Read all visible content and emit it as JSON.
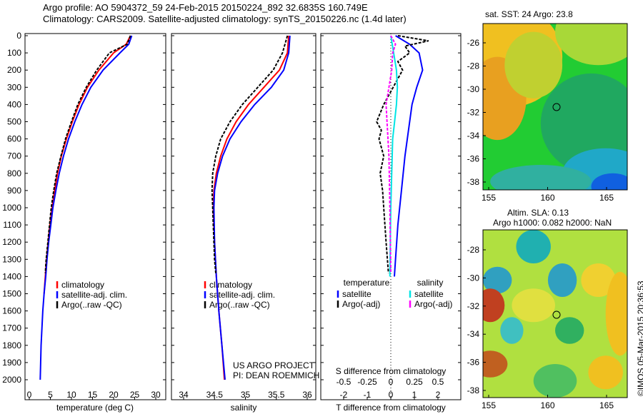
{
  "title": {
    "line1": "Argo profile: AO 5904372_59 24-Feb-2015 20150224_892 32.6835S 160.749E",
    "line2": "Climatology: CARS2009. Satellite-adjusted climatology: synTS_20150226.nc (1.4d later)"
  },
  "colors": {
    "climatology": "#ff0000",
    "satellite": "#0000ff",
    "argo": "#000000",
    "sal_sat": "#00e5e5",
    "sal_argo": "#ff00ff"
  },
  "chart_data": [
    {
      "type": "line",
      "name": "temperature",
      "xlabel": "temperature (deg C)",
      "xlim": [
        -2,
        32
      ],
      "ylim": [
        0,
        2050
      ],
      "xticks": [
        0,
        5,
        10,
        15,
        20,
        25,
        30
      ],
      "yticks": [
        0,
        100,
        200,
        300,
        400,
        500,
        600,
        700,
        800,
        900,
        1000,
        1100,
        1200,
        1300,
        1400,
        1500,
        1600,
        1700,
        1800,
        1900,
        2000
      ],
      "legend": [
        "climatology",
        "satellite-adj. clim.",
        "Argo(..raw -QC)"
      ],
      "series": [
        {
          "name": "climatology",
          "depth": [
            0,
            50,
            100,
            200,
            300,
            400,
            500,
            600,
            700,
            800,
            900,
            1000,
            1100,
            1200,
            1300,
            1400,
            1500
          ],
          "values": [
            24,
            23,
            20,
            16.5,
            13.8,
            11.8,
            10.2,
            8.8,
            7.6,
            6.7,
            6,
            5.4,
            4.9,
            4.5,
            4.1,
            3.8,
            3.5
          ]
        },
        {
          "name": "satellite-adj. clim.",
          "depth": [
            0,
            50,
            100,
            200,
            300,
            400,
            500,
            600,
            700,
            800,
            900,
            1000,
            1100,
            1200,
            1300,
            1400,
            1500,
            1600,
            1700,
            1800,
            1900,
            2000
          ],
          "values": [
            24.3,
            23.6,
            21.5,
            17.5,
            14.6,
            12.5,
            10.8,
            9.3,
            8.1,
            7.1,
            6.3,
            5.6,
            5.1,
            4.6,
            4.2,
            3.9,
            3.5,
            3.2,
            3,
            2.8,
            2.7,
            2.6
          ]
        },
        {
          "name": "Argo(..raw -QC)",
          "depth": [
            0,
            50,
            100,
            200,
            300,
            400,
            500,
            600,
            700,
            800,
            900,
            1000,
            1100,
            1200,
            1300,
            1380
          ],
          "values": [
            24,
            23.2,
            19,
            16,
            13.5,
            11.5,
            10,
            8.6,
            7.5,
            6.5,
            5.8,
            5.2,
            4.8,
            4.4,
            4,
            3.8
          ]
        }
      ]
    },
    {
      "type": "line",
      "name": "salinity",
      "xlabel": "salinity",
      "xlim": [
        33.8,
        36.2
      ],
      "xticks": [
        34,
        34.5,
        35,
        35.5,
        36
      ],
      "legend": [
        "climatology",
        "satellite-adj. clim.",
        "Argo(..raw -QC)"
      ],
      "series": [
        {
          "name": "climatology",
          "depth": [
            0,
            100,
            200,
            300,
            400,
            500,
            600,
            700,
            800,
            900,
            1000,
            1200,
            1400,
            1600,
            1800,
            2000
          ],
          "values": [
            35.7,
            35.68,
            35.55,
            35.3,
            35.05,
            34.85,
            34.7,
            34.6,
            34.53,
            34.49,
            34.48,
            34.5,
            34.53,
            34.57,
            34.62,
            34.66
          ]
        },
        {
          "name": "satellite-adj. clim.",
          "depth": [
            0,
            100,
            200,
            300,
            400,
            500,
            600,
            700,
            800,
            900,
            1000,
            1200,
            1400,
            1600,
            1800,
            2000
          ],
          "values": [
            35.72,
            35.7,
            35.62,
            35.42,
            35.15,
            34.93,
            34.75,
            34.63,
            34.55,
            34.5,
            34.49,
            34.5,
            34.53,
            34.57,
            34.62,
            34.67
          ]
        },
        {
          "name": "Argo(..raw -QC)",
          "depth": [
            0,
            100,
            200,
            300,
            400,
            500,
            600,
            700,
            800,
            900,
            1000,
            1100,
            1200,
            1300,
            1380
          ],
          "values": [
            35.68,
            35.6,
            35.45,
            35.2,
            34.95,
            34.75,
            34.6,
            34.52,
            34.47,
            34.46,
            34.47,
            34.48,
            34.49,
            34.5,
            34.52
          ]
        }
      ]
    },
    {
      "type": "line",
      "name": "difference",
      "xlabel": "T difference from climatology",
      "x2label": "S difference from climatology",
      "xlim": [
        -3,
        3
      ],
      "xticks": [
        -2,
        -1,
        0,
        1,
        2
      ],
      "x2ticks": [
        "-0.5",
        "-0.25",
        "0",
        "0.25",
        "0.5"
      ],
      "legend": {
        "temperature_title": "temperature",
        "salinity_title": "salinity",
        "t_sat": "satellite",
        "t_argo": "Argo(-adj)",
        "s_sat": "satellite",
        "s_argo": "Argo(-adj)"
      },
      "series": [
        {
          "name": "T satellite",
          "depth": [
            0,
            50,
            100,
            200,
            300,
            400,
            500,
            700,
            900,
            1100,
            1300,
            1400
          ],
          "values": [
            0.2,
            0.8,
            1.2,
            1.35,
            1.1,
            0.9,
            0.8,
            0.6,
            0.45,
            0.3,
            0.2,
            0.15
          ]
        },
        {
          "name": "T Argo(-adj)",
          "depth": [
            0,
            30,
            60,
            100,
            150,
            200,
            300,
            400,
            500,
            550,
            600,
            700,
            800,
            900,
            1000,
            1200,
            1380
          ],
          "values": [
            0.3,
            1.6,
            0.6,
            0.8,
            0.3,
            0.5,
            0.1,
            -0.3,
            -0.6,
            -0.4,
            -0.5,
            -0.3,
            -0.45,
            -0.35,
            -0.3,
            -0.2,
            -0.1
          ]
        },
        {
          "name": "S satellite",
          "depth": [
            0,
            100,
            200,
            300,
            400,
            500,
            600,
            800,
            1000,
            1400
          ],
          "values": [
            0,
            0.03,
            0.06,
            0.07,
            0.06,
            0.04,
            0.02,
            0.01,
            0,
            -0.01
          ]
        },
        {
          "name": "S Argo(-adj)",
          "depth": [
            0,
            50,
            100,
            200,
            300,
            400,
            500,
            700,
            1000,
            1380
          ],
          "values": [
            0,
            0.05,
            0.02,
            0.01,
            -0.02,
            -0.05,
            -0.04,
            -0.02,
            -0.01,
            0
          ]
        }
      ]
    }
  ],
  "annotation": {
    "line1": "US ARGO PROJECT",
    "line2": "PI: DEAN ROEMMICH"
  },
  "maps": {
    "sst": {
      "title": "sat. SST: 24 Argo: 23.8",
      "xticks": [
        "155",
        "160",
        "165"
      ],
      "yticks": [
        "-26",
        "-28",
        "-30",
        "-32",
        "-34",
        "-36",
        "-38"
      ]
    },
    "sla": {
      "title1": "Altim. SLA: 0.13",
      "title2": "Argo h1000: 0.082 h2000: NaN",
      "xticks": [
        "155",
        "160",
        "165"
      ],
      "yticks": [
        "-28",
        "-30",
        "-32",
        "-34",
        "-36",
        "-38"
      ]
    }
  },
  "credit": "©IMOS 05-Mar-2015 20:36:53"
}
